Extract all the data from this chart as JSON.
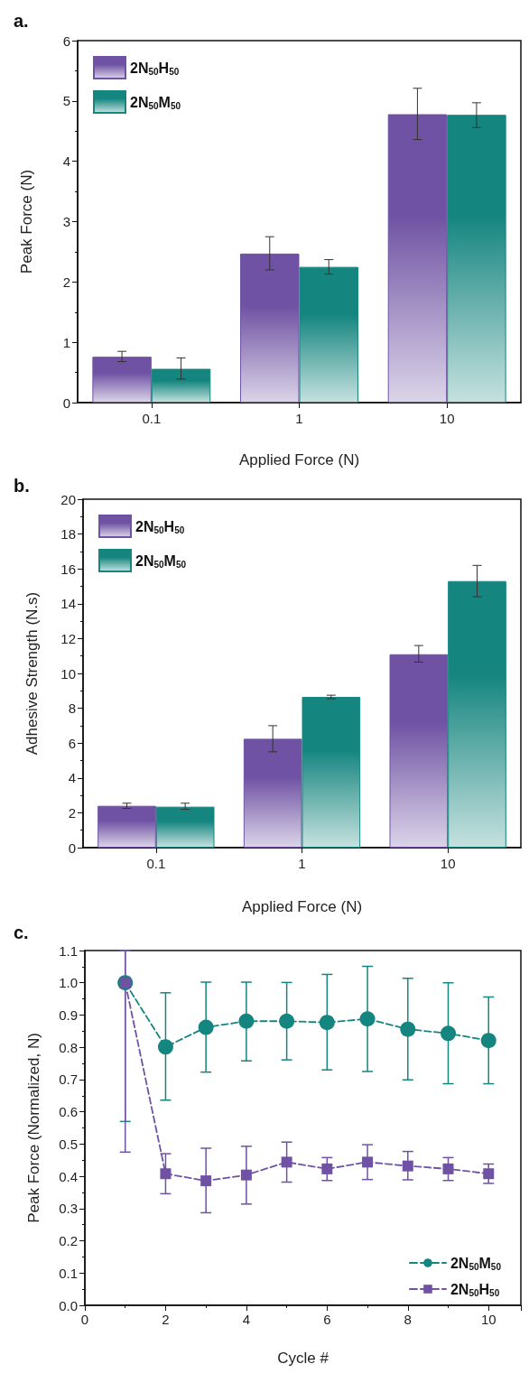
{
  "chart_data": [
    {
      "type": "bar",
      "title": "a.",
      "xlabel": "Applied Force (N)",
      "ylabel": "Peak Force (N)",
      "categories": [
        "0.1",
        "1",
        "10"
      ],
      "ylim": [
        0,
        6
      ],
      "yticks": [
        0,
        1,
        2,
        3,
        4,
        5,
        6
      ],
      "grid": false,
      "legend": "top left",
      "series": [
        {
          "name": "2N$_{50}$H$_{50}$",
          "color": "#6f52a3",
          "values": [
            0.76,
            2.47,
            4.78
          ],
          "errors": [
            [
              0.68,
              0.85
            ],
            [
              2.2,
              2.75
            ],
            [
              4.36,
              5.21
            ]
          ]
        },
        {
          "name": "2N$_{50}$M$_{50}$",
          "color": "#15857f",
          "values": [
            0.56,
            2.25,
            4.77
          ],
          "errors": [
            [
              0.39,
              0.74
            ],
            [
              2.13,
              2.37
            ],
            [
              4.56,
              4.97
            ]
          ]
        }
      ]
    },
    {
      "type": "bar",
      "title": "b.",
      "xlabel": "Applied Force (N)",
      "ylabel": "Adhesive Strength (N.s)",
      "categories": [
        "0.1",
        "1",
        "10"
      ],
      "ylim": [
        0,
        20
      ],
      "yticks": [
        0,
        2,
        4,
        6,
        8,
        10,
        12,
        14,
        16,
        18,
        20
      ],
      "grid": false,
      "legend": "top left",
      "series": [
        {
          "name": "2N$_{50}$H$_{50}$",
          "color": "#6f52a3",
          "values": [
            2.4,
            6.25,
            11.1
          ],
          "errors": [
            [
              2.25,
              2.55
            ],
            [
              5.5,
              7.0
            ],
            [
              10.65,
              11.6
            ]
          ]
        },
        {
          "name": "2N$_{50}$M$_{50}$",
          "color": "#15857f",
          "values": [
            2.35,
            8.65,
            15.3
          ],
          "errors": [
            [
              2.2,
              2.55
            ],
            [
              8.55,
              8.75
            ],
            [
              14.4,
              16.2
            ]
          ]
        }
      ]
    },
    {
      "type": "line",
      "title": "c.",
      "xlabel": "Cycle #",
      "ylabel": "Peak Force (Normalized, N)",
      "xlim": [
        0,
        10.8
      ],
      "xticks": [
        0,
        2,
        4,
        6,
        8,
        10
      ],
      "ylim": [
        0,
        1.1
      ],
      "yticks": [
        {
          "value": 0,
          "label": "0.0"
        },
        {
          "value": 0.1,
          "label": "0.1"
        },
        {
          "value": 0.2,
          "label": "0.2"
        },
        {
          "value": 0.3,
          "label": "0.3"
        },
        {
          "value": 0.4,
          "label": "0.4"
        },
        {
          "value": 0.5,
          "label": "0.5"
        },
        {
          "value": 0.6,
          "label": "0.6"
        },
        {
          "value": 0.7,
          "label": "0.7"
        },
        {
          "value": 0.8,
          "label": "0.8"
        },
        {
          "value": 0.9,
          "label": "0.9"
        },
        {
          "value": 1,
          "label": "1.0"
        },
        {
          "value": 1.1,
          "label": "1.1"
        }
      ],
      "grid": false,
      "legend": "bottom right",
      "line_style": "dashed",
      "series": [
        {
          "name": "2N$_{50}$M$_{50}$",
          "color": "#15857f",
          "marker": "circle",
          "x": [
            1,
            2,
            3,
            4,
            5,
            6,
            7,
            8,
            9,
            10
          ],
          "values": [
            1.0,
            0.801,
            0.862,
            0.881,
            0.881,
            0.877,
            0.888,
            0.856,
            0.843,
            0.821
          ],
          "errors": [
            [
              0.57,
              1.1
            ],
            [
              0.636,
              0.969
            ],
            [
              0.723,
              1.002
            ],
            [
              0.758,
              1.002
            ],
            [
              0.761,
              1.001
            ],
            [
              0.73,
              1.026
            ],
            [
              0.725,
              1.051
            ],
            [
              0.699,
              1.014
            ],
            [
              0.687,
              1.0
            ],
            [
              0.687,
              0.956
            ]
          ]
        },
        {
          "name": "2N$_{50}$H$_{50}$",
          "color": "#6f52a3",
          "marker": "square",
          "x": [
            1,
            2,
            3,
            4,
            5,
            6,
            7,
            8,
            9,
            10
          ],
          "values": [
            1.0,
            0.408,
            0.386,
            0.404,
            0.444,
            0.423,
            0.444,
            0.432,
            0.423,
            0.408
          ],
          "errors": [
            [
              0.475,
              1.1
            ],
            [
              0.346,
              0.47
            ],
            [
              0.287,
              0.487
            ],
            [
              0.314,
              0.493
            ],
            [
              0.382,
              0.506
            ],
            [
              0.387,
              0.458
            ],
            [
              0.39,
              0.498
            ],
            [
              0.389,
              0.477
            ],
            [
              0.387,
              0.458
            ],
            [
              0.378,
              0.438
            ]
          ]
        }
      ]
    }
  ]
}
